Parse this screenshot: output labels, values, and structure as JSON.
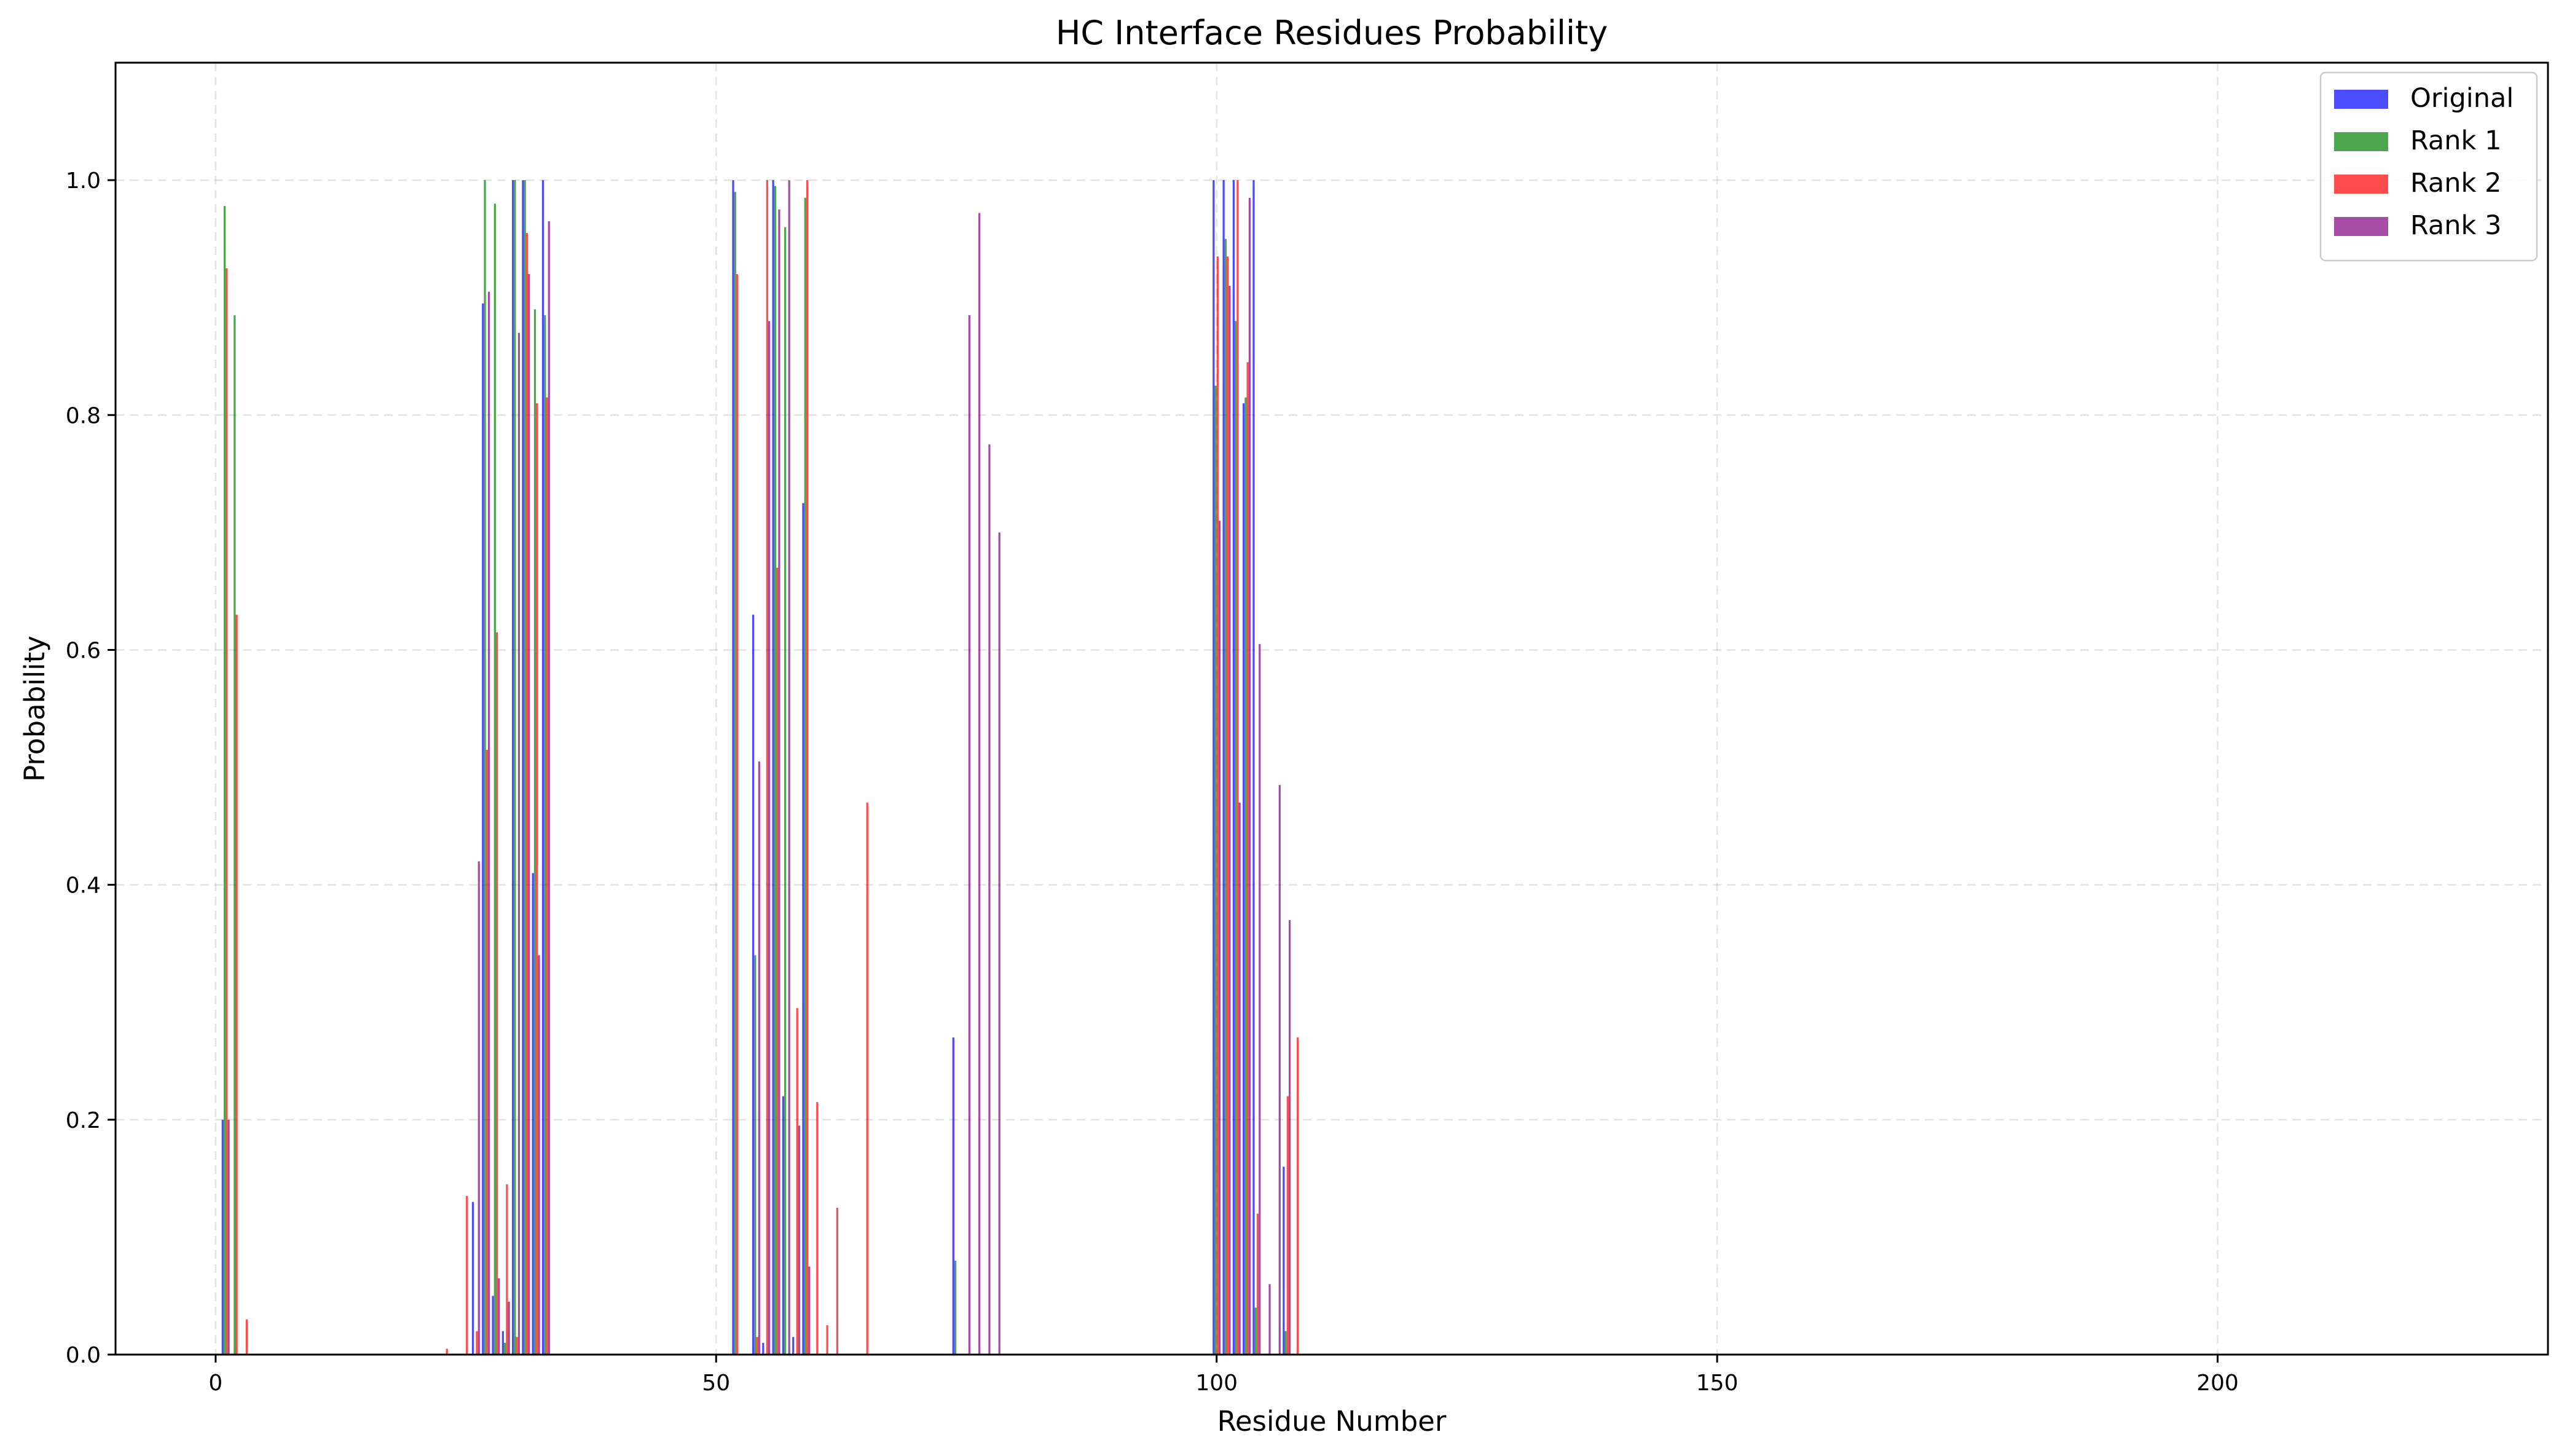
{
  "chart_data": {
    "type": "bar",
    "title": "HC Interface Residues Probability",
    "xlabel": "Residue Number",
    "ylabel": "Probability",
    "xlim": [
      -10,
      233
    ],
    "ylim": [
      0,
      1.1
    ],
    "xticks": [
      0,
      50,
      100,
      150,
      200
    ],
    "yticks": [
      0.0,
      0.2,
      0.4,
      0.6,
      0.8,
      1.0
    ],
    "xtick_labels": [
      "0",
      "50",
      "100",
      "150",
      "200"
    ],
    "ytick_labels": [
      "0.0",
      "0.2",
      "0.4",
      "0.6",
      "0.8",
      "1.0"
    ],
    "grid": true,
    "legend_position": "top-right",
    "bar_group_width": 0.8,
    "series": [
      {
        "name": "Original",
        "color": "#0000ff",
        "points": [
          [
            1,
            0.2
          ],
          [
            26,
            0.13
          ],
          [
            27,
            0.895
          ],
          [
            28,
            0.05
          ],
          [
            29,
            0.02
          ],
          [
            30,
            1.0
          ],
          [
            31,
            1.0
          ],
          [
            32,
            0.41
          ],
          [
            33,
            1.0
          ],
          [
            52,
            1.0
          ],
          [
            54,
            0.63
          ],
          [
            55,
            0.01
          ],
          [
            56,
            1.0
          ],
          [
            57,
            0.22
          ],
          [
            58,
            0.015
          ],
          [
            59,
            0.725
          ],
          [
            74,
            0.27
          ],
          [
            100,
            1.0
          ],
          [
            101,
            1.0
          ],
          [
            102,
            1.0
          ],
          [
            103,
            0.81
          ],
          [
            104,
            1.0
          ],
          [
            107,
            0.16
          ]
        ]
      },
      {
        "name": "Rank 1",
        "color": "#008000",
        "points": [
          [
            1,
            0.978
          ],
          [
            2,
            0.885
          ],
          [
            27,
            1.0
          ],
          [
            28,
            0.98
          ],
          [
            29,
            0.01
          ],
          [
            30,
            1.0
          ],
          [
            31,
            1.0
          ],
          [
            32,
            0.89
          ],
          [
            33,
            0.885
          ],
          [
            52,
            0.99
          ],
          [
            54,
            0.34
          ],
          [
            56,
            0.995
          ],
          [
            57,
            0.96
          ],
          [
            59,
            0.985
          ],
          [
            74,
            0.08
          ],
          [
            100,
            0.825
          ],
          [
            101,
            0.95
          ],
          [
            102,
            0.88
          ],
          [
            103,
            0.815
          ],
          [
            104,
            0.04
          ],
          [
            107,
            0.02
          ]
        ]
      },
      {
        "name": "Rank 2",
        "color": "#ff0000",
        "points": [
          [
            1,
            0.925
          ],
          [
            2,
            0.63
          ],
          [
            3,
            0.03
          ],
          [
            23,
            0.005
          ],
          [
            25,
            0.135
          ],
          [
            26,
            0.02
          ],
          [
            27,
            0.515
          ],
          [
            28,
            0.615
          ],
          [
            29,
            0.145
          ],
          [
            30,
            0.015
          ],
          [
            31,
            0.955
          ],
          [
            32,
            0.81
          ],
          [
            33,
            0.815
          ],
          [
            52,
            0.92
          ],
          [
            54,
            0.015
          ],
          [
            55,
            1.0
          ],
          [
            56,
            0.67
          ],
          [
            58,
            0.295
          ],
          [
            59,
            1.0
          ],
          [
            60,
            0.215
          ],
          [
            61,
            0.025
          ],
          [
            62,
            0.125
          ],
          [
            65,
            0.47
          ],
          [
            100,
            0.935
          ],
          [
            101,
            0.935
          ],
          [
            102,
            1.0
          ],
          [
            103,
            0.845
          ],
          [
            104,
            0.12
          ],
          [
            107,
            0.22
          ],
          [
            108,
            0.27
          ]
        ]
      },
      {
        "name": "Rank 3",
        "color": "#800080",
        "points": [
          [
            1,
            0.2
          ],
          [
            26,
            0.42
          ],
          [
            27,
            0.905
          ],
          [
            28,
            0.065
          ],
          [
            29,
            0.045
          ],
          [
            30,
            0.87
          ],
          [
            31,
            0.92
          ],
          [
            32,
            0.34
          ],
          [
            33,
            0.965
          ],
          [
            54,
            0.505
          ],
          [
            55,
            0.88
          ],
          [
            56,
            0.975
          ],
          [
            57,
            1.0
          ],
          [
            58,
            0.195
          ],
          [
            59,
            0.075
          ],
          [
            75,
            0.885
          ],
          [
            76,
            0.972
          ],
          [
            77,
            0.775
          ],
          [
            78,
            0.7
          ],
          [
            100,
            0.71
          ],
          [
            101,
            0.91
          ],
          [
            102,
            0.47
          ],
          [
            103,
            0.985
          ],
          [
            104,
            0.605
          ],
          [
            105,
            0.06
          ],
          [
            106,
            0.485
          ],
          [
            107,
            0.37
          ]
        ]
      }
    ]
  }
}
